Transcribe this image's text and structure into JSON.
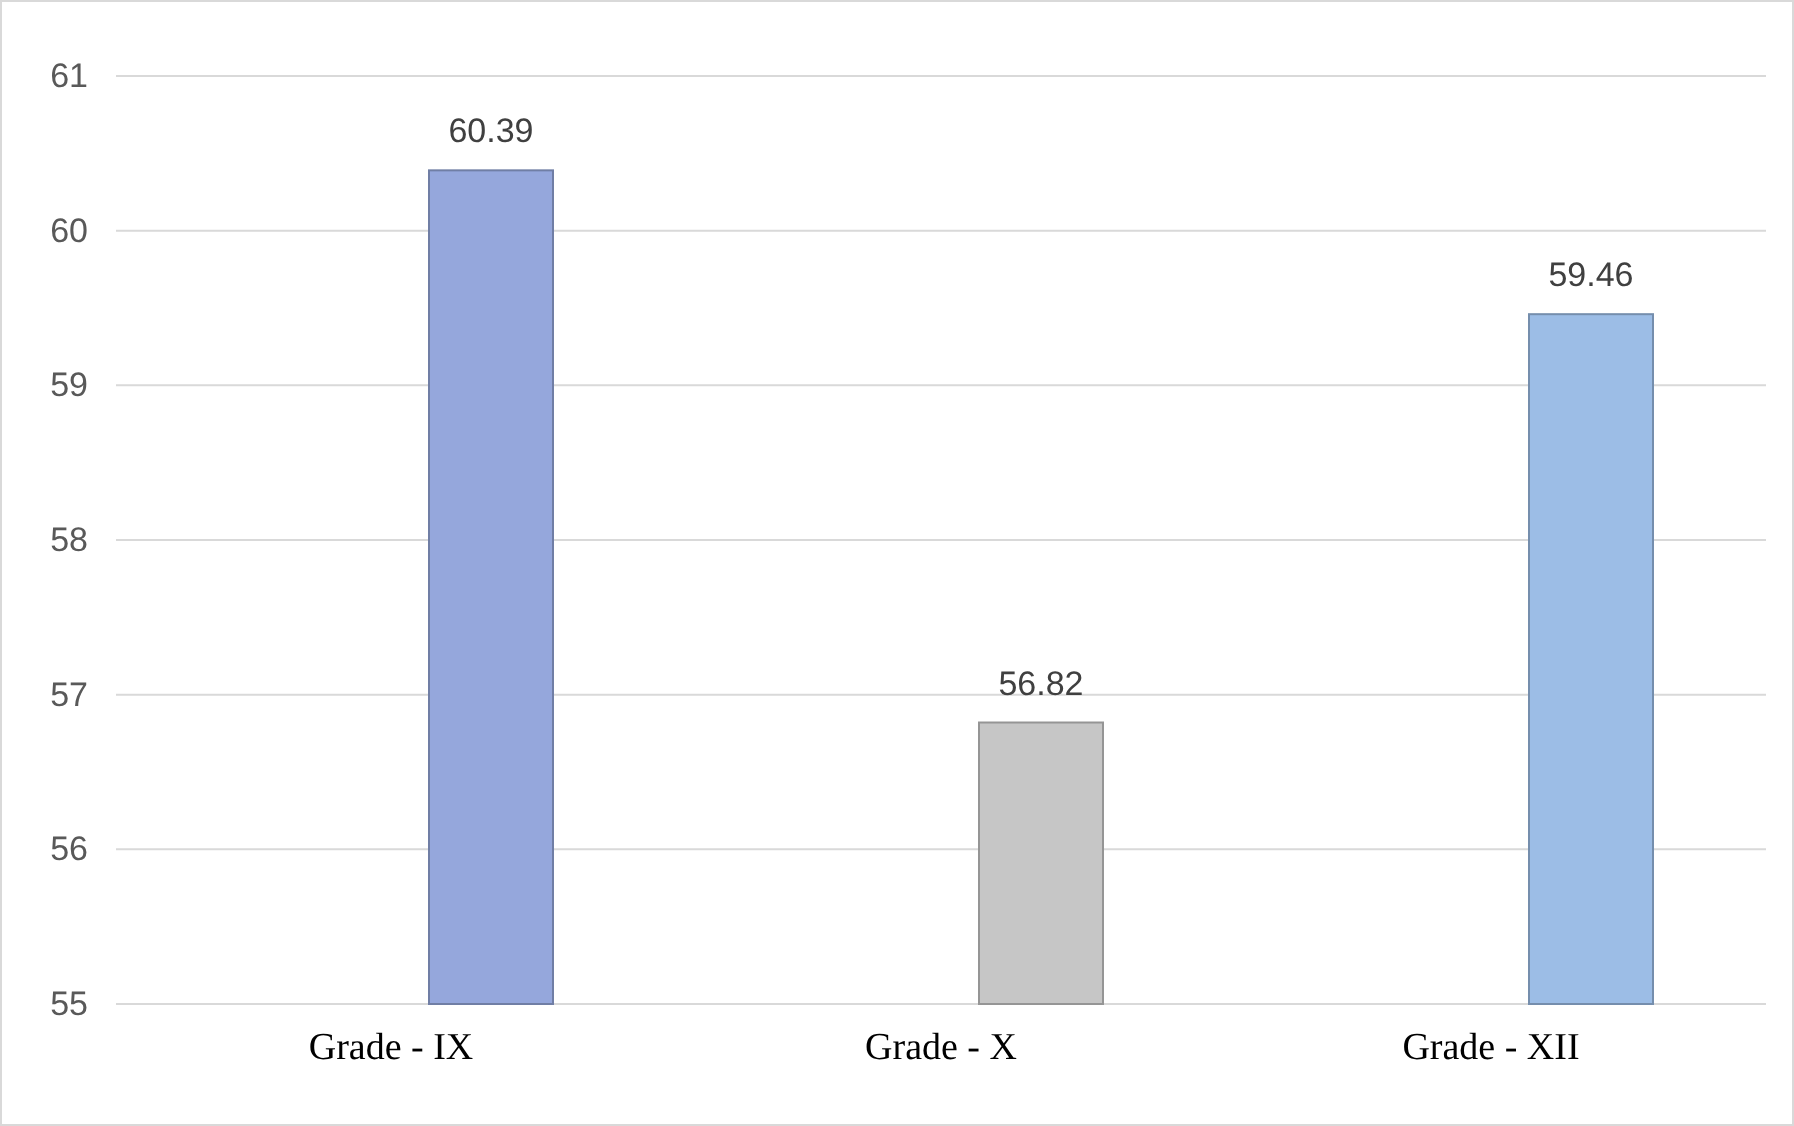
{
  "chart_data": {
    "type": "bar",
    "categories": [
      "Grade - IX",
      "Grade - X",
      "Grade - XII"
    ],
    "values": [
      60.39,
      56.82,
      59.46
    ],
    "colors": [
      "#95a7dc",
      "#c6c6c6",
      "#9cbde6"
    ],
    "ylim": [
      55,
      61
    ],
    "yticks": [
      55,
      56,
      57,
      58,
      59,
      60,
      61
    ],
    "grid": "y",
    "data_labels": true
  }
}
